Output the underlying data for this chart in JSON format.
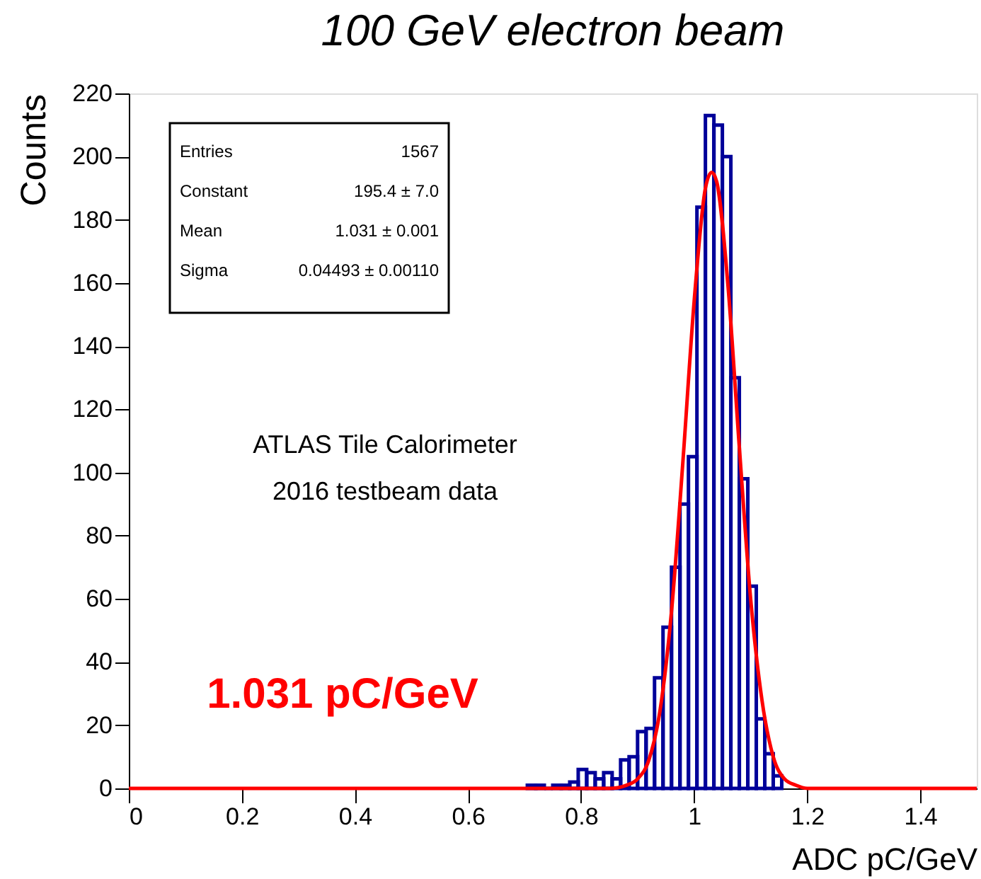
{
  "chart_data": {
    "type": "histogram",
    "title": "100 GeV electron beam",
    "xlabel": "ADC pC/GeV",
    "ylabel": "Counts",
    "bins": [
      0.705,
      0.72,
      0.735,
      0.75,
      0.765,
      0.78,
      0.795,
      0.81,
      0.825,
      0.84,
      0.855,
      0.87,
      0.885,
      0.9,
      0.915,
      0.93,
      0.945,
      0.96,
      0.975,
      0.99,
      1.005,
      1.02,
      1.035,
      1.05,
      1.065,
      1.08,
      1.095,
      1.11,
      1.125,
      1.14,
      1.155
    ],
    "values": [
      1,
      1,
      0,
      1,
      1,
      2,
      6,
      5,
      3,
      5,
      3,
      9,
      10,
      18,
      19,
      35,
      51,
      70,
      90,
      105,
      184,
      213,
      210,
      200,
      130,
      98,
      64,
      22,
      11,
      4
    ],
    "color": "#000099",
    "series": [
      {
        "type": "line",
        "color": "#ff0000",
        "x": [
          0,
          0.8,
          0.85,
          0.88,
          0.9,
          0.92,
          0.94,
          0.96,
          0.98,
          1.0,
          1.02,
          1.031,
          1.04,
          1.06,
          1.08,
          1.1,
          1.12,
          1.14,
          1.16,
          1.18,
          1.2,
          1.5
        ],
        "values": [
          0,
          0,
          0,
          1,
          3,
          9,
          25,
          56,
          103,
          154,
          190,
          195,
          192,
          159,
          108,
          60,
          28,
          10,
          3,
          1,
          0,
          0
        ]
      }
    ],
    "xlim": [
      0,
      1.5
    ],
    "xticks": [
      0,
      0.2,
      0.4,
      0.6,
      0.8,
      1,
      1.2,
      1.4
    ],
    "ylim": [
      0,
      220
    ],
    "yticks": [
      0,
      20,
      40,
      60,
      80,
      100,
      120,
      140,
      160,
      180,
      200,
      220
    ],
    "annotations": [
      "Entries 1567",
      "Constant 195.4 ± 7.0",
      "Mean 1.031 ± 0.001",
      "Sigma 0.04493 ± 0.00110",
      "ATLAS Tile Calorimeter",
      "2016 testbeam data",
      "1.031 pC/GeV"
    ],
    "grid": false
  }
}
